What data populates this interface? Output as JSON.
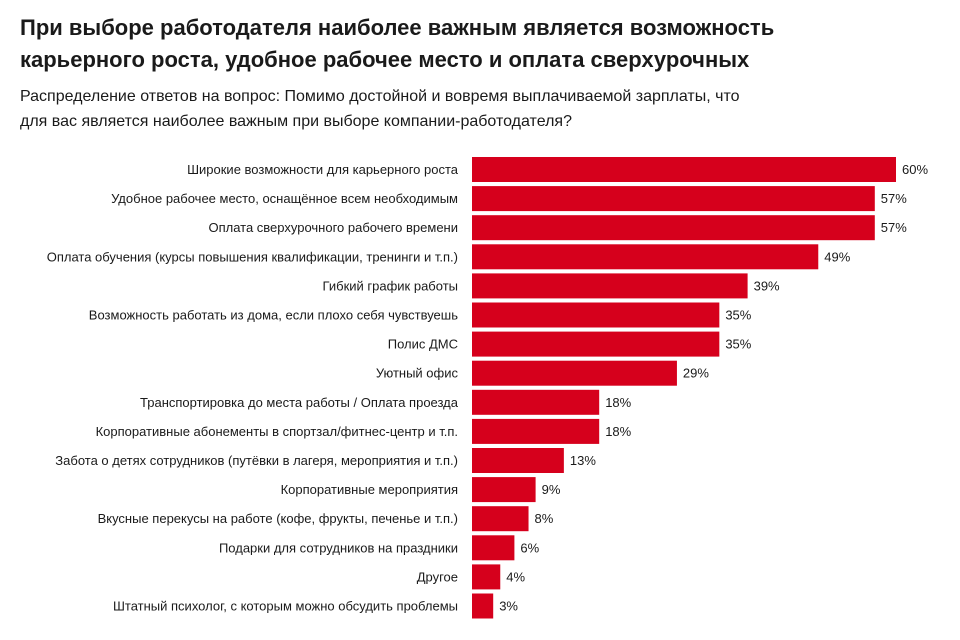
{
  "title_lines": [
    "При выборе работодателя наиболее важным является возможность",
    "карьерного роста, удобное рабочее место и оплата сверхурочных"
  ],
  "subtitle_lines": [
    "Распределение ответов на вопрос: Помимо достойной и вовремя выплачиваемой зарплаты, что",
    "для вас является наиболее важным при выборе компании-работодателя?"
  ],
  "colors": {
    "bar": "#d6001c",
    "text": "#1a1a1a"
  },
  "chart_data": {
    "type": "bar",
    "orientation": "horizontal",
    "title": "При выборе работодателя наиболее важным является возможность карьерного роста, удобное рабочее место и оплата сверхурочных",
    "xlabel": "",
    "ylabel": "",
    "xlim": [
      0,
      60
    ],
    "unit": "%",
    "grid": false,
    "categories": [
      "Широкие возможности для карьерного роста",
      "Удобное рабочее место, оснащённое всем необходимым",
      "Оплата сверхурочного рабочего времени",
      "Оплата обучения (курсы повышения квалификации, тренинги и т.п.)",
      "Гибкий график работы",
      "Возможность работать из дома, если плохо себя чувствуешь",
      "Полис ДМС",
      "Уютный офис",
      "Транспортировка до места работы / Оплата проезда",
      "Корпоративные абонементы в спортзал/фитнес-центр и т.п.",
      "Забота о детях сотрудников (путёвки в лагеря, мероприятия и т.п.)",
      "Корпоративные мероприятия",
      "Вкусные перекусы на работе (кофе, фрукты, печенье и т.п.)",
      "Подарки для сотрудников на праздники",
      "Другое",
      "Штатный психолог, с которым можно обсудить проблемы"
    ],
    "values": [
      60,
      57,
      57,
      49,
      39,
      35,
      35,
      29,
      18,
      18,
      13,
      9,
      8,
      6,
      4,
      3
    ],
    "value_labels": [
      "60%",
      "57%",
      "57%",
      "49%",
      "39%",
      "35%",
      "35%",
      "29%",
      "18%",
      "18%",
      "13%",
      "9%",
      "8%",
      "6%",
      "4%",
      "3%"
    ]
  }
}
